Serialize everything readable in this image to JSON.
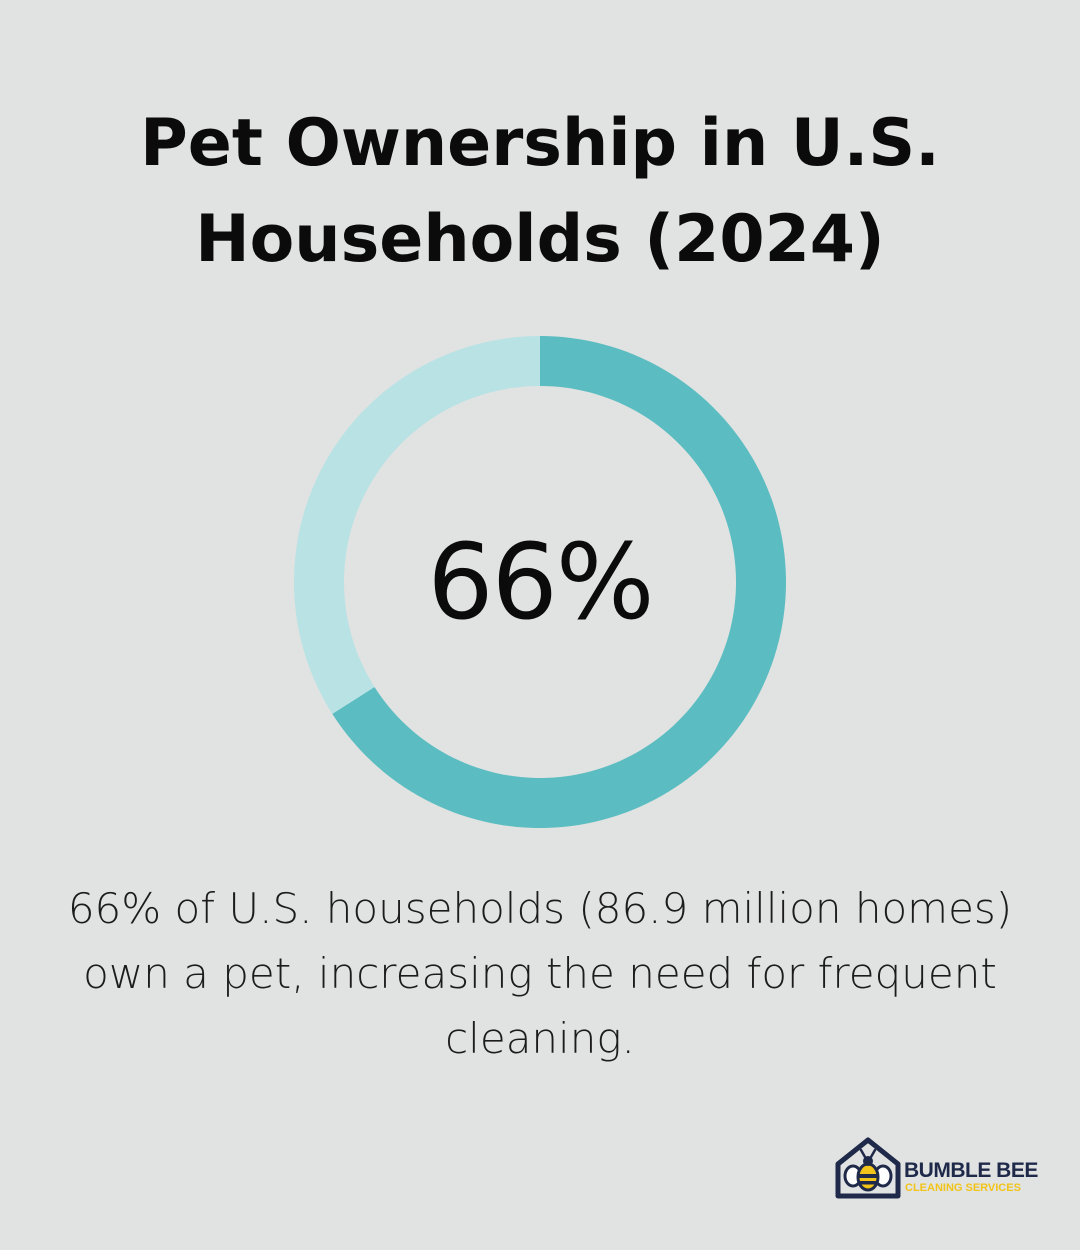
{
  "title": "Pet Ownership in U.S. Households (2024)",
  "chart_data": {
    "type": "pie",
    "variant": "donut",
    "slices": [
      {
        "label": "",
        "value": 66,
        "color": "#5bbdc1"
      },
      {
        "label": "",
        "value": 34,
        "color": "#b9e2e4"
      }
    ],
    "center_label": "66%",
    "title": "Pet Ownership in U.S. Households (2024)"
  },
  "description": "66% of U.S. households (86.9 million homes) own a pet, increasing the need for frequent cleaning.",
  "logo": {
    "name": "BUMBLE BEE",
    "sub": "CLEANING SERVICES",
    "icon": "bee-house-icon"
  },
  "colors": {
    "background": "#e1e3e2",
    "primary": "#5bbdc1",
    "secondary": "#b9e2e4",
    "logo_navy": "#1f2a4a",
    "logo_yellow": "#f2c318"
  }
}
